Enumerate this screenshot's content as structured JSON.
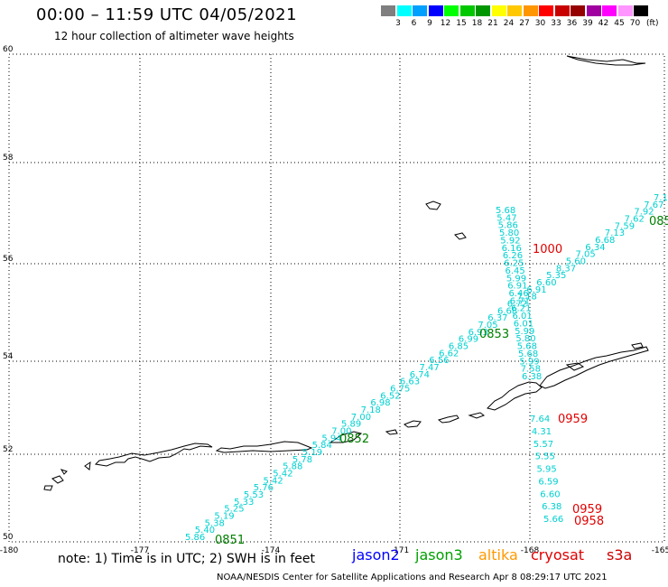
{
  "header": {
    "title": "00:00 – 11:59 UTC 04/05/2021",
    "subtitle": "12 hour collection of altimeter wave heights"
  },
  "colorbar": {
    "unit": "(ft)",
    "bins": [
      {
        "label": "3",
        "color": "#7f7f7f"
      },
      {
        "label": "6",
        "color": "#00ffff"
      },
      {
        "label": "9",
        "color": "#00a0ff"
      },
      {
        "label": "12",
        "color": "#0000ff"
      },
      {
        "label": "15",
        "color": "#00ff00"
      },
      {
        "label": "18",
        "color": "#00c800"
      },
      {
        "label": "21",
        "color": "#009600"
      },
      {
        "label": "24",
        "color": "#ffff00"
      },
      {
        "label": "27",
        "color": "#ffc800"
      },
      {
        "label": "30",
        "color": "#ff9600"
      },
      {
        "label": "33",
        "color": "#ff0000"
      },
      {
        "label": "36",
        "color": "#c80000"
      },
      {
        "label": "39",
        "color": "#960000"
      },
      {
        "label": "42",
        "color": "#a000a0"
      },
      {
        "label": "45",
        "color": "#ff00ff"
      },
      {
        "label": "70",
        "color": "#ff96ff"
      },
      {
        "label": "",
        "color": "#000000"
      }
    ]
  },
  "axes": {
    "lon_labels": [
      "-180",
      "-177",
      "-174",
      "-171",
      "-168",
      "-165"
    ],
    "lat_labels": [
      "60",
      "58",
      "56",
      "54",
      "52",
      "50"
    ]
  },
  "colors": {
    "grid": "#000000",
    "coast": "#000000",
    "swh": "#00d0d0",
    "time_jason3": "#008000",
    "time_cryosat": "#e00000",
    "jason2": "#0000ff",
    "jason3": "#00a000",
    "altika": "#ff9900",
    "cryosat": "#e00000",
    "s3a": "#cc0000"
  },
  "tracks": {
    "diagonal": [
      "5.86",
      "5.40",
      "5.38",
      "5.19",
      "5.25",
      "5.33",
      "5.53",
      "5.76",
      "5.42",
      "5.42",
      "5.88",
      "5.78",
      "5.19",
      "5.84",
      "5.94",
      "7.00",
      "5.89",
      "7.00",
      "7.18",
      "6.98",
      "6.52",
      "6.75",
      "6.63",
      "6.74",
      "7.47",
      "6.56",
      "6.62",
      "6.85",
      "6.99",
      "6.93",
      "7.05",
      "6.37",
      "6.68",
      "6.72",
      "7.18",
      "6.91",
      "6.60",
      "5.35",
      "8.37",
      "5.60",
      "7.05",
      "6.34",
      "6.68",
      "7.13",
      "7.59",
      "7.62",
      "7.92",
      "7.67",
      "7.1"
    ],
    "vertical_north": [
      "5.68",
      "5.47",
      "5.86",
      "5.80",
      "5.92",
      "6.16",
      "6.26",
      "6.25",
      "6.45",
      "5.99",
      "6.91",
      "6.46",
      "6.71",
      "6.21",
      "6.01",
      "6.01",
      "5.99",
      "5.80",
      "5.68",
      "5.68",
      "5.99",
      "7.58",
      "6.38"
    ],
    "vertical_south": [
      "7.64",
      "4.31",
      "5.57",
      "5.55",
      "5.95",
      "6.59",
      "6.60",
      "6.38",
      "5.66"
    ]
  },
  "time_labels": [
    {
      "text": "0851",
      "sat": "jason3"
    },
    {
      "text": "0852",
      "sat": "jason3"
    },
    {
      "text": "0853",
      "sat": "jason3"
    },
    {
      "text": "085",
      "sat": "jason3"
    },
    {
      "text": "1000",
      "sat": "cryosat"
    },
    {
      "text": "0959",
      "sat": "cryosat"
    },
    {
      "text": "0959",
      "sat": "cryosat"
    },
    {
      "text": "0958",
      "sat": "cryosat"
    }
  ],
  "footer": {
    "note": "note: 1) Time is in UTC; 2) SWH is in feet",
    "credit": "NOAA/NESDIS Center for Satellite Applications and Research    Apr  8 08:29:17 UTC 2021",
    "legend": {
      "jason2": "jason2",
      "jason3": "jason3",
      "altika": "altika",
      "cryosat": "cryosat",
      "s3a": "s3a"
    }
  }
}
